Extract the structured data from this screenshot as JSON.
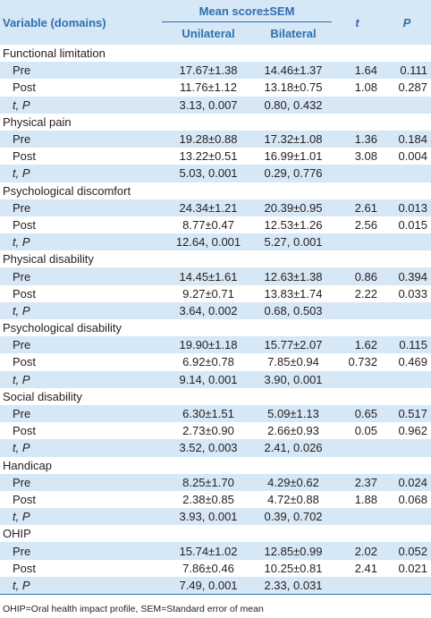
{
  "header": {
    "variable": "Variable (domains)",
    "mean_score": "Mean score±SEM",
    "t": "t",
    "p": "P",
    "unilateral": "Unilateral",
    "bilateral": "Bilateral"
  },
  "groups": [
    {
      "name": "Functional limitation",
      "rows": [
        {
          "label": "Pre",
          "uni": "17.67±1.38",
          "bi": "14.46±1.37",
          "t": "1.64",
          "p": "0.111"
        },
        {
          "label": "Post",
          "uni": "11.76±1.12",
          "bi": "13.18±0.75",
          "t": "1.08",
          "p": "0.287"
        },
        {
          "label": "t, P",
          "uni": "3.13, 0.007",
          "bi": "0.80, 0.432",
          "t": "",
          "p": ""
        }
      ]
    },
    {
      "name": "Physical pain",
      "rows": [
        {
          "label": "Pre",
          "uni": "19.28±0.88",
          "bi": "17.32±1.08",
          "t": "1.36",
          "p": "0.184"
        },
        {
          "label": "Post",
          "uni": "13.22±0.51",
          "bi": "16.99±1.01",
          "t": "3.08",
          "p": "0.004"
        },
        {
          "label": "t, P",
          "uni": "5.03, 0.001",
          "bi": "0.29, 0.776",
          "t": "",
          "p": ""
        }
      ]
    },
    {
      "name": "Psychological discomfort",
      "rows": [
        {
          "label": "Pre",
          "uni": "24.34±1.21",
          "bi": "20.39±0.95",
          "t": "2.61",
          "p": "0.013"
        },
        {
          "label": "Post",
          "uni": "8.77±0.47",
          "bi": "12.53±1.26",
          "t": "2.56",
          "p": "0.015"
        },
        {
          "label": "t, P",
          "uni": "12.64, 0.001",
          "bi": "5.27, 0.001",
          "t": "",
          "p": ""
        }
      ]
    },
    {
      "name": "Physical disability",
      "rows": [
        {
          "label": "Pre",
          "uni": "14.45±1.61",
          "bi": "12.63±1.38",
          "t": "0.86",
          "p": "0.394"
        },
        {
          "label": "Post",
          "uni": "9.27±0.71",
          "bi": "13.83±1.74",
          "t": "2.22",
          "p": "0.033"
        },
        {
          "label": "t, P",
          "uni": "3.64, 0.002",
          "bi": "0.68, 0.503",
          "t": "",
          "p": ""
        }
      ]
    },
    {
      "name": "Psychological disability",
      "rows": [
        {
          "label": "Pre",
          "uni": "19.90±1.18",
          "bi": "15.77±2.07",
          "t": "1.62",
          "p": "0.115"
        },
        {
          "label": "Post",
          "uni": "6.92±0.78",
          "bi": "7.85±0.94",
          "t": "0.732",
          "p": "0.469"
        },
        {
          "label": "t, P",
          "uni": "9.14, 0.001",
          "bi": "3.90, 0.001",
          "t": "",
          "p": ""
        }
      ]
    },
    {
      "name": "Social disability",
      "rows": [
        {
          "label": "Pre",
          "uni": "6.30±1.51",
          "bi": "5.09±1.13",
          "t": "0.65",
          "p": "0.517"
        },
        {
          "label": "Post",
          "uni": "2.73±0.90",
          "bi": "2.66±0.93",
          "t": "0.05",
          "p": "0.962"
        },
        {
          "label": "t, P",
          "uni": "3.52, 0.003",
          "bi": "2.41, 0.026",
          "t": "",
          "p": ""
        }
      ]
    },
    {
      "name": "Handicap",
      "rows": [
        {
          "label": "Pre",
          "uni": "8.25±1.70",
          "bi": "4.29±0.62",
          "t": "2.37",
          "p": "0.024"
        },
        {
          "label": "Post",
          "uni": "2.38±0.85",
          "bi": "4.72±0.88",
          "t": "1.88",
          "p": "0.068"
        },
        {
          "label": "t, P",
          "uni": "3.93, 0.001",
          "bi": "0.39, 0.702",
          "t": "",
          "p": ""
        }
      ]
    },
    {
      "name": "OHIP",
      "rows": [
        {
          "label": "Pre",
          "uni": "15.74±1.02",
          "bi": "12.85±0.99",
          "t": "2.02",
          "p": "0.052"
        },
        {
          "label": "Post",
          "uni": "7.86±0.46",
          "bi": "10.25±0.81",
          "t": "2.41",
          "p": "0.021"
        },
        {
          "label": "t, P",
          "uni": "7.49, 0.001",
          "bi": "2.33, 0.031",
          "t": "",
          "p": ""
        }
      ]
    }
  ],
  "footnote": "OHIP=Oral health impact profile, SEM=Standard error of mean",
  "colors": {
    "header_bg": "#d6e7f5",
    "header_text": "#2f6fb0",
    "body_text": "#231f20"
  }
}
